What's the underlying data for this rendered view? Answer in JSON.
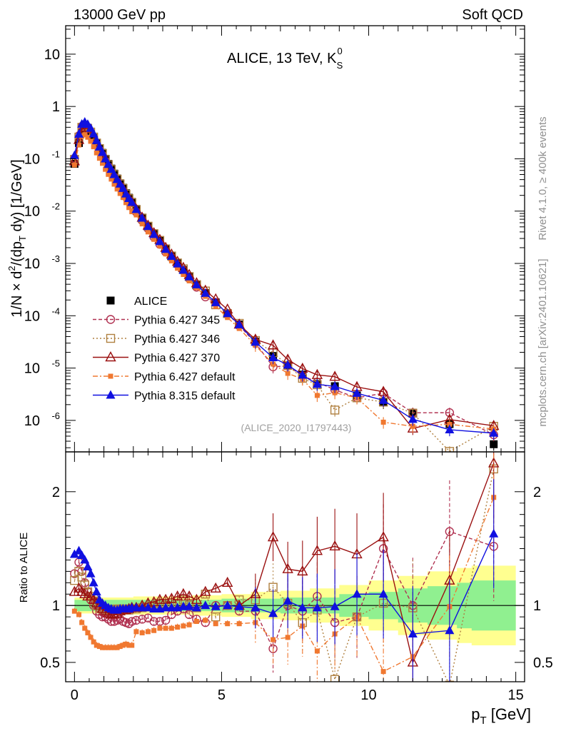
{
  "header": {
    "left": "13000 GeV pp",
    "right": "Soft QCD"
  },
  "side_text": {
    "top": "Rivet 4.1.0, ≥ 400k events",
    "bottom": "mcplots.cern.ch [arXiv:2401.10621]"
  },
  "colors": {
    "data": "#000000",
    "p345": "#b03050",
    "p346": "#b08040",
    "p370": "#9a1010",
    "p6def": "#f07830",
    "p8def": "#1010e0",
    "band_inner": "#90f090",
    "band_outer": "#ffff90"
  },
  "chart_data": [
    {
      "type": "scatter",
      "panel": "main",
      "title": "ALICE, 13 TeV, K",
      "title_sup": "0",
      "title_sub": "S",
      "watermark": "(ALICE_2020_I1797443)",
      "ylabel": "1/N × d²/(dp_T dy) [1/GeV]",
      "yscale": "log",
      "ylim": [
        2.5e-07,
        35
      ],
      "xlim": [
        -0.3,
        15.3
      ],
      "y_ticks": [
        1e-06,
        1e-05,
        0.0001,
        0.001,
        0.01,
        0.1,
        1,
        10
      ],
      "y_tick_labels": [
        {
          "base": "10",
          "exp": "-6"
        },
        {
          "base": "10",
          "exp": "-5"
        },
        {
          "base": "10",
          "exp": "-4"
        },
        {
          "base": "10",
          "exp": "-3"
        },
        {
          "base": "10",
          "exp": "-2"
        },
        {
          "base": "10",
          "exp": "-1"
        },
        {
          "base": "1",
          "exp": ""
        },
        {
          "base": "10",
          "exp": ""
        }
      ],
      "legend": [
        "ALICE",
        "Pythia 6.427 345",
        "Pythia 6.427 346",
        "Pythia 6.427 370",
        "Pythia 6.427 default",
        "Pythia 8.315 default"
      ],
      "x": [
        0.0,
        0.15,
        0.25,
        0.35,
        0.45,
        0.55,
        0.65,
        0.75,
        0.85,
        0.95,
        1.05,
        1.15,
        1.25,
        1.35,
        1.45,
        1.55,
        1.65,
        1.75,
        1.85,
        1.95,
        2.1,
        2.3,
        2.5,
        2.7,
        2.9,
        3.1,
        3.3,
        3.5,
        3.7,
        3.9,
        4.15,
        4.45,
        4.8,
        5.2,
        5.6,
        6.15,
        6.75,
        7.25,
        7.75,
        8.25,
        8.85,
        9.6,
        10.5,
        11.5,
        12.75,
        14.25
      ],
      "series": [
        {
          "name": "ALICE",
          "values": [
            0.08,
            0.2,
            0.32,
            0.36,
            0.34,
            0.3,
            0.25,
            0.2,
            0.16,
            0.13,
            0.1,
            0.08,
            0.065,
            0.052,
            0.042,
            0.034,
            0.028,
            0.022,
            0.018,
            0.015,
            0.011,
            0.0075,
            0.0052,
            0.0037,
            0.0027,
            0.0019,
            0.0014,
            0.001,
            0.00075,
            0.00056,
            0.0004,
            0.00027,
            0.00018,
            0.00011,
            6.8e-05,
            3.2e-05,
            1.7e-05,
            1.1e-05,
            7.5e-06,
            5e-06,
            4.5e-06,
            3e-06,
            2.2e-06,
            1.4e-06,
            8.5e-07,
            3.5e-07
          ]
        },
        {
          "name": "Pythia 6.427 345",
          "ratio": [
            1.28,
            1.38,
            1.3,
            1.2,
            1.12,
            1.05,
            1.0,
            0.95,
            0.92,
            0.9,
            0.9,
            0.88,
            0.86,
            0.86,
            0.87,
            0.88,
            0.86,
            0.85,
            0.84,
            0.86,
            0.87,
            0.88,
            0.89,
            0.86,
            0.86,
            0.87,
            0.92,
            0.95,
            0.97,
            0.92,
            0.88,
            0.85,
            1.0,
            1.0,
            0.95,
            0.95,
            0.62,
            1.0,
            0.95,
            1.08,
            0.85,
            0.9,
            1.5,
            1.0,
            1.65,
            1.52
          ]
        },
        {
          "name": "Pythia 6.427 346",
          "ratio": [
            1.22,
            1.3,
            1.25,
            1.18,
            1.12,
            1.08,
            1.04,
            1.0,
            0.98,
            0.97,
            0.97,
            0.96,
            0.96,
            0.96,
            0.97,
            0.97,
            0.97,
            0.96,
            0.96,
            0.97,
            0.97,
            0.98,
            0.99,
            1.0,
            1.02,
            1.0,
            0.99,
            1.02,
            1.05,
            1.0,
            0.98,
            1.1,
            0.9,
            1.0,
            1.05,
            1.05,
            1.16,
            1.02,
            0.85,
            0.96,
            0.35,
            0.9,
            1.02,
            0.98,
            0.3,
            2.2
          ]
        },
        {
          "name": "Pythia 6.427 370",
          "ratio": [
            1.12,
            1.15,
            1.12,
            1.1,
            1.08,
            1.08,
            1.05,
            1.02,
            1.0,
            0.97,
            0.95,
            0.93,
            0.92,
            0.92,
            0.93,
            0.95,
            0.96,
            0.96,
            0.97,
            0.98,
            0.98,
            1.0,
            1.02,
            1.03,
            1.05,
            1.05,
            1.06,
            1.08,
            1.1,
            1.08,
            1.05,
            1.12,
            1.15,
            1.2,
            1.0,
            1.1,
            1.6,
            1.32,
            1.3,
            1.48,
            1.52,
            1.45,
            1.6,
            0.5,
            1.22,
            2.25
          ]
        },
        {
          "name": "Pythia 6.427 default",
          "ratio": [
            0.95,
            0.92,
            0.85,
            0.8,
            0.76,
            0.72,
            0.68,
            0.65,
            0.64,
            0.63,
            0.63,
            0.63,
            0.63,
            0.63,
            0.63,
            0.64,
            0.65,
            0.66,
            0.65,
            0.65,
            0.77,
            0.76,
            0.77,
            0.78,
            0.8,
            0.8,
            0.8,
            0.81,
            0.82,
            0.83,
            0.86,
            0.87,
            0.84,
            0.84,
            0.84,
            0.85,
            0.7,
            0.72,
            0.82,
            0.6,
            0.75,
            0.9,
            0.42,
            0.55,
            0.99,
            1.95
          ]
        },
        {
          "name": "Pythia 8.315 default",
          "ratio": [
            1.45,
            1.48,
            1.44,
            1.4,
            1.34,
            1.28,
            1.2,
            1.12,
            1.05,
            1.02,
            1.0,
            0.98,
            0.97,
            0.96,
            0.96,
            0.97,
            0.97,
            0.97,
            0.97,
            0.98,
            0.98,
            0.98,
            0.98,
            0.97,
            0.97,
            0.98,
            0.98,
            0.98,
            0.99,
            0.99,
            0.98,
            1.0,
            0.99,
            1.0,
            0.99,
            0.98,
            0.93,
            1.04,
            0.98,
            0.98,
            0.99,
            1.1,
            1.1,
            0.75,
            0.78,
            1.63
          ]
        }
      ]
    },
    {
      "type": "scatter",
      "panel": "ratio",
      "ylabel": "Ratio to ALICE",
      "xlabel": "p_T [GeV]",
      "ylim": [
        0.33,
        2.35
      ],
      "xlim": [
        -0.3,
        15.3
      ],
      "y_ticks": [
        0.5,
        1,
        2
      ],
      "y_tick_labels": [
        "0.5",
        "1",
        "2"
      ],
      "x_ticks": [
        0,
        5,
        10,
        15
      ],
      "x_tick_labels": [
        "0",
        "5",
        "10",
        "15"
      ],
      "band_inner_x": [
        0,
        1,
        2,
        3,
        4,
        5,
        6,
        7,
        8,
        9,
        10,
        11,
        12,
        13,
        13.5,
        15
      ],
      "band_inner_halfwidth": [
        0.05,
        0.05,
        0.05,
        0.05,
        0.05,
        0.06,
        0.06,
        0.07,
        0.07,
        0.1,
        0.12,
        0.15,
        0.17,
        0.2,
        0.22,
        0.25
      ],
      "band_outer_halfwidth": [
        0.07,
        0.07,
        0.08,
        0.08,
        0.09,
        0.1,
        0.12,
        0.13,
        0.15,
        0.18,
        0.22,
        0.26,
        0.3,
        0.33,
        0.35,
        0.4
      ]
    }
  ]
}
